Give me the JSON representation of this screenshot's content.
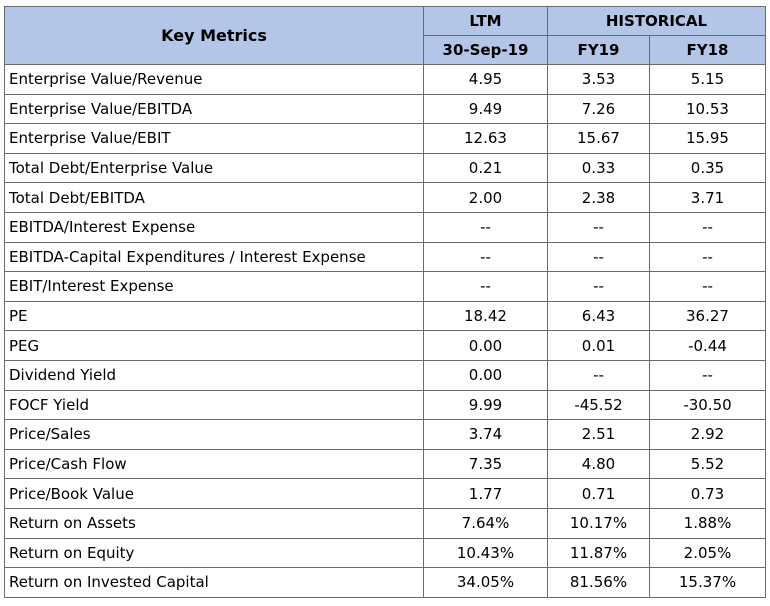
{
  "header": {
    "key_metrics": "Key Metrics",
    "ltm": "LTM",
    "historical": "HISTORICAL",
    "ltm_date": "30-Sep-19",
    "fy19": "FY19",
    "fy18": "FY18"
  },
  "rows": [
    {
      "label": "Enterprise Value/Revenue",
      "ltm": "4.95",
      "fy19": "3.53",
      "fy18": "5.15"
    },
    {
      "label": "Enterprise Value/EBITDA",
      "ltm": "9.49",
      "fy19": "7.26",
      "fy18": "10.53"
    },
    {
      "label": "Enterprise Value/EBIT",
      "ltm": "12.63",
      "fy19": "15.67",
      "fy18": "15.95"
    },
    {
      "label": "Total Debt/Enterprise Value",
      "ltm": "0.21",
      "fy19": "0.33",
      "fy18": "0.35"
    },
    {
      "label": "Total Debt/EBITDA",
      "ltm": "2.00",
      "fy19": "2.38",
      "fy18": "3.71"
    },
    {
      "label": "EBITDA/Interest Expense",
      "ltm": "--",
      "fy19": "--",
      "fy18": "--"
    },
    {
      "label": "EBITDA-Capital Expenditures / Interest Expense",
      "ltm": "--",
      "fy19": "--",
      "fy18": "--"
    },
    {
      "label": "EBIT/Interest Expense",
      "ltm": "--",
      "fy19": "--",
      "fy18": "--"
    },
    {
      "label": "PE",
      "ltm": "18.42",
      "fy19": "6.43",
      "fy18": "36.27"
    },
    {
      "label": "PEG",
      "ltm": "0.00",
      "fy19": "0.01",
      "fy18": "-0.44"
    },
    {
      "label": "Dividend Yield",
      "ltm": "0.00",
      "fy19": "--",
      "fy18": "--"
    },
    {
      "label": "FOCF Yield",
      "ltm": "9.99",
      "fy19": "-45.52",
      "fy18": "-30.50"
    },
    {
      "label": "Price/Sales",
      "ltm": "3.74",
      "fy19": "2.51",
      "fy18": "2.92"
    },
    {
      "label": "Price/Cash Flow",
      "ltm": "7.35",
      "fy19": "4.80",
      "fy18": "5.52"
    },
    {
      "label": "Price/Book Value",
      "ltm": "1.77",
      "fy19": "0.71",
      "fy18": "0.73"
    },
    {
      "label": "Return on Assets",
      "ltm": "7.64%",
      "fy19": "10.17%",
      "fy18": "1.88%"
    },
    {
      "label": "Return on Equity",
      "ltm": "10.43%",
      "fy19": "11.87%",
      "fy18": "2.05%"
    },
    {
      "label": "Return on Invested Capital",
      "ltm": "34.05%",
      "fy19": "81.56%",
      "fy18": "15.37%"
    }
  ],
  "colors": {
    "header_fill": "#b4c6e7",
    "border": "#6b6b6b"
  }
}
